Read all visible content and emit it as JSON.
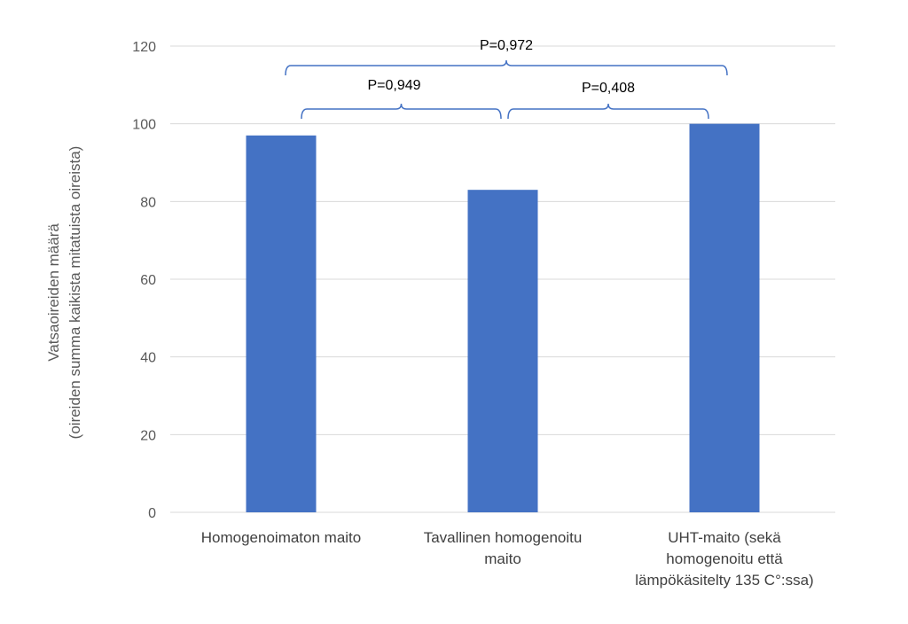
{
  "chart_data": {
    "type": "bar",
    "title": "",
    "xlabel": "",
    "ylabel": "Vatsaoireiden määrä",
    "ylabel_sub": "(oireiden summa kaikista mitatuista oireista)",
    "categories": [
      [
        "Homogenoimaton maito"
      ],
      [
        "Tavallinen homogenoitu",
        "maito"
      ],
      [
        "UHT-maito (sekä",
        "homogenoitu että",
        "lämpökäsitelty 135 C°:ssa)"
      ]
    ],
    "values": [
      97,
      83,
      100
    ],
    "ylim": [
      0,
      120
    ],
    "yticks": [
      0,
      20,
      40,
      60,
      80,
      100,
      120
    ],
    "grid": true,
    "legend": "none",
    "bar_color": "#4472C4",
    "grid_color": "#D9D9D9",
    "annotations": [
      {
        "label": "P=0,972",
        "from": 0,
        "to": 2
      },
      {
        "label": "P=0,949",
        "from": 0,
        "to": 1
      },
      {
        "label": "P=0,408",
        "from": 1,
        "to": 2
      }
    ]
  }
}
